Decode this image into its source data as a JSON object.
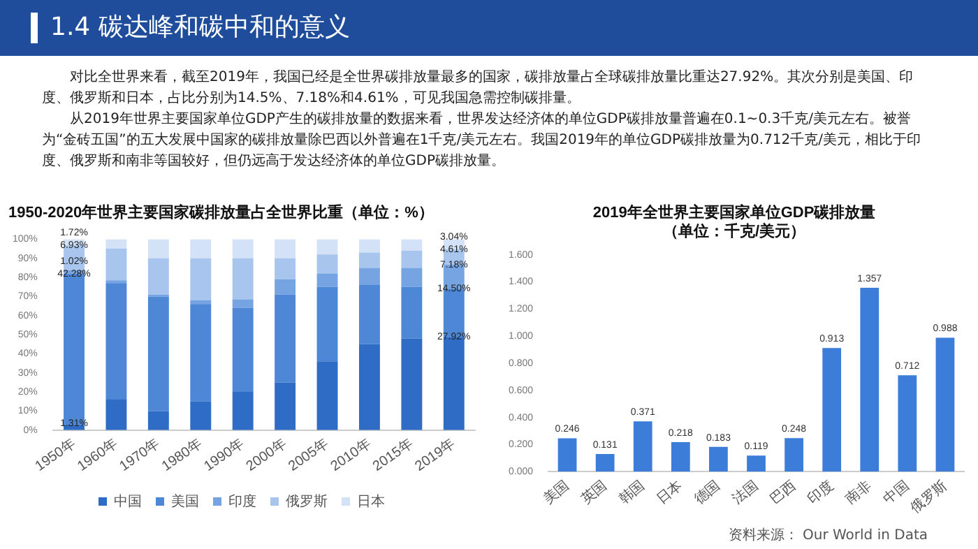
{
  "chart_data": [
    {
      "type": "other",
      "title": "1.4 碳达峰和碳中和的意义",
      "annotations": [
        "对比全世界来看，截至2019年，我国已经是全世界碳排放量最多的国家，碳排放量占全球碳排放量比重达27.92%。其次分别是美国、印度、俄罗斯和日本，占比分别为14.5%、7.18%和4.61%，可见我国急需控制碳排量。",
        "从2019年世界主要国家单位GDP产生的碳排放量的数据来看，世界发达经济体的单位GDP碳排放量普遍在0.1~0.3千克/美元左右。被誉为“金砖五国”的五大发展中国家的碳排放量除巴西以外普遍在1千克/美元左右。我国2019年的单位GDP碳排放量为0.712千克/美元，相比于印度、俄罗斯和南非等国较好，但仍远高于发达经济体的单位GDP碳排放量。"
      ]
    },
    {
      "type": "bar",
      "title": "1950-2020年世界主要国家碳排放量占全世界比重（单位：%）",
      "stacked": true,
      "legend": "bottom",
      "categories": [
        "1950年",
        "1960年",
        "1970年",
        "1980年",
        "1990年",
        "2000年",
        "2005年",
        "2010年",
        "2015年",
        "2019年"
      ],
      "ylim": [
        0,
        100
      ],
      "yticks": [
        {
          "value": 0,
          "label": "0%"
        },
        {
          "value": 10,
          "label": "10%"
        },
        {
          "value": 20,
          "label": "20%"
        },
        {
          "value": 30,
          "label": "30%"
        },
        {
          "value": 40,
          "label": "40%"
        },
        {
          "value": 50,
          "label": "50%"
        },
        {
          "value": 60,
          "label": "60%"
        },
        {
          "value": 70,
          "label": "70%"
        },
        {
          "value": 80,
          "label": "80%"
        },
        {
          "value": 90,
          "label": "90%"
        },
        {
          "value": 100,
          "label": "100%"
        }
      ],
      "series": [
        {
          "name": "中国",
          "color": "#2f6cc6",
          "values": [
            2.5,
            16,
            10,
            15,
            20,
            25,
            36,
            45,
            48,
            48.8
          ]
        },
        {
          "name": "美国",
          "color": "#4d87d6",
          "values": [
            79.4,
            61,
            60,
            51,
            44,
            46,
            39,
            31,
            27,
            25.3
          ]
        },
        {
          "name": "印度",
          "color": "#76a3e2",
          "values": [
            1.9,
            1.5,
            1,
            2,
            4.5,
            8,
            7,
            9,
            10,
            12.5
          ]
        },
        {
          "name": "俄罗斯",
          "color": "#a8c5ee",
          "values": [
            13,
            16.5,
            19,
            22,
            21.5,
            11,
            10,
            8,
            9,
            8.1
          ]
        },
        {
          "name": "日本",
          "color": "#d3e2f6",
          "values": [
            3.2,
            5,
            10,
            10,
            10,
            10,
            8,
            7,
            6,
            5.3
          ]
        }
      ],
      "annotations": [
        {
          "text": "1.31%",
          "x": "1950年",
          "y": 2.5
        },
        {
          "text": "42.28%",
          "x": "1950年",
          "y": 81.9
        },
        {
          "text": "1.02%",
          "x": "1950年",
          "y": 83.8
        },
        {
          "text": "6.93%",
          "x": "1950年",
          "y": 96.8
        },
        {
          "text": "1.72%",
          "x": "1950年",
          "y": 100
        },
        {
          "text": "27.92%",
          "x": "2019年",
          "y": 48.8
        },
        {
          "text": "14.50%",
          "x": "2019年",
          "y": 74.1
        },
        {
          "text": "7.18%",
          "x": "2019年",
          "y": 86.6
        },
        {
          "text": "4.61%",
          "x": "2019年",
          "y": 94.7
        },
        {
          "text": "3.04%",
          "x": "2019年",
          "y": 100
        }
      ]
    },
    {
      "type": "bar",
      "title": "2019年全世界主要国家单位GDP碳排放量",
      "subtitle": "（单位：千克/美元）",
      "data_labels": true,
      "categories": [
        "美国",
        "英国",
        "韩国",
        "日本",
        "德国",
        "法国",
        "巴西",
        "印度",
        "南非",
        "中国",
        "俄罗斯"
      ],
      "values": [
        0.246,
        0.131,
        0.371,
        0.218,
        0.183,
        0.119,
        0.248,
        0.913,
        1.357,
        0.712,
        0.988
      ],
      "color": "#3c7dd9",
      "ylim": [
        0,
        1.6
      ],
      "yticks": [
        {
          "value": 0,
          "label": "0.000"
        },
        {
          "value": 0.2,
          "label": "0.200"
        },
        {
          "value": 0.4,
          "label": "0.400"
        },
        {
          "value": 0.6,
          "label": "0.600"
        },
        {
          "value": 0.8,
          "label": "0.800"
        },
        {
          "value": 1,
          "label": "1.000"
        },
        {
          "value": 1.2,
          "label": "1.200"
        },
        {
          "value": 1.4,
          "label": "1.400"
        },
        {
          "value": 1.6,
          "label": "1.600"
        }
      ],
      "annotations": [
        "资料来源： Our World in Data"
      ]
    }
  ]
}
